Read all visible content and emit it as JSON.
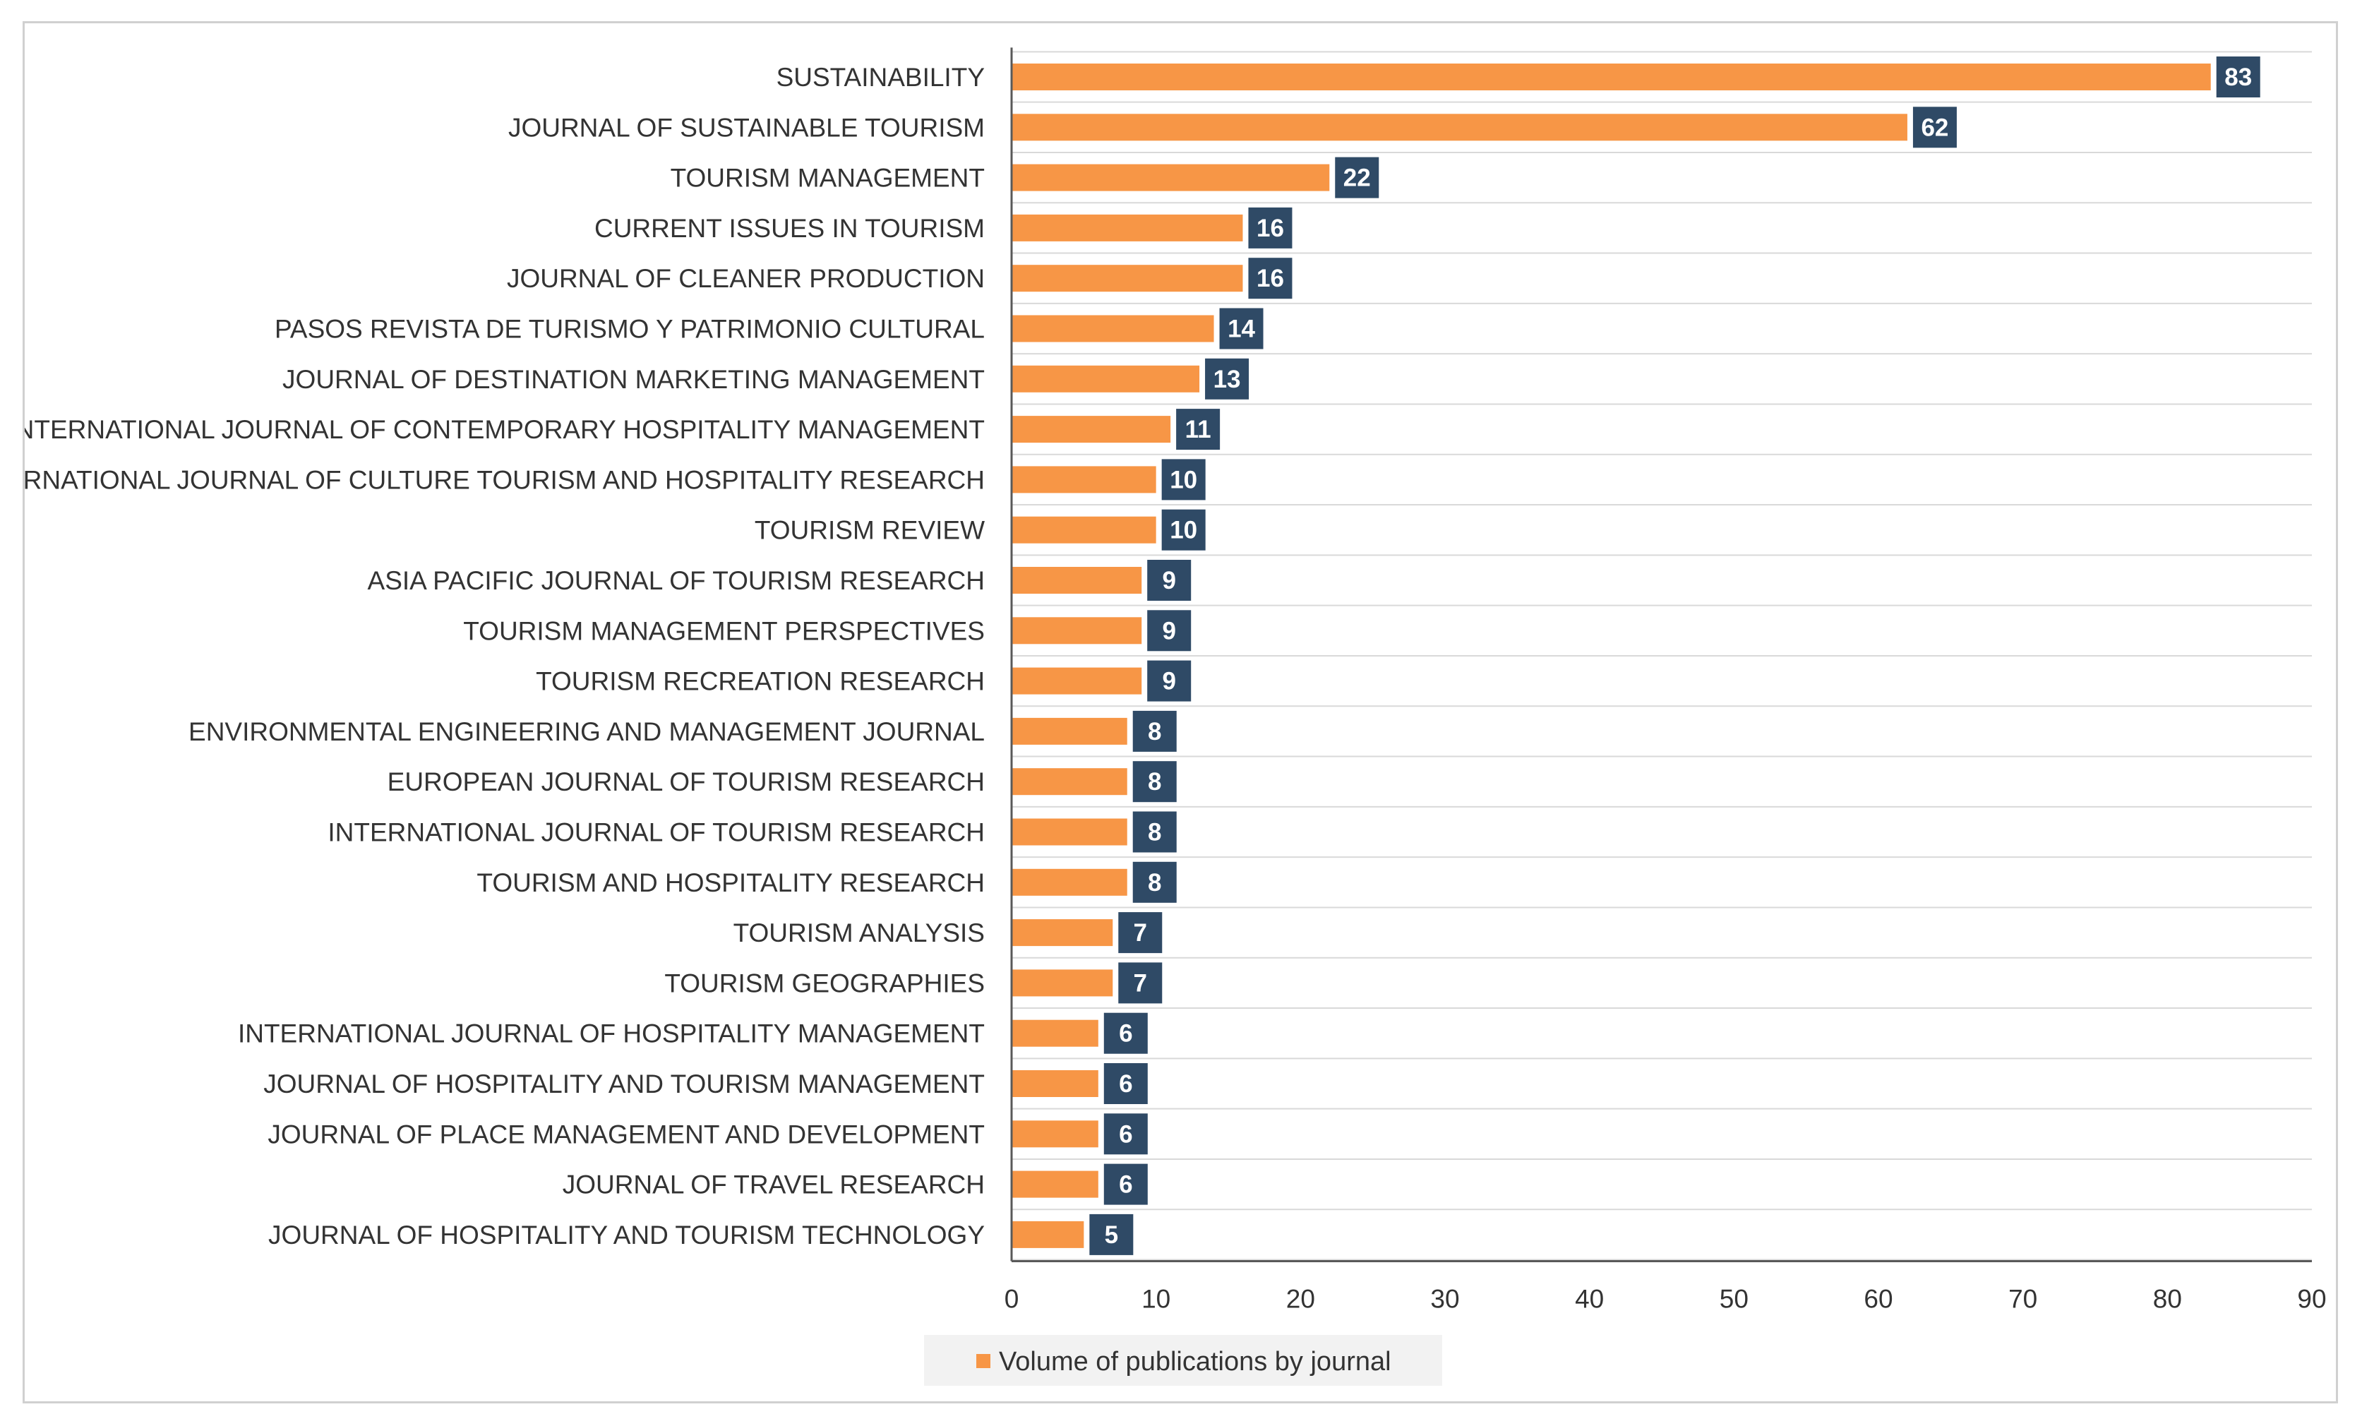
{
  "chart_data": {
    "type": "bar",
    "orientation": "horizontal",
    "categories": [
      "SUSTAINABILITY",
      "JOURNAL OF SUSTAINABLE TOURISM",
      "TOURISM MANAGEMENT",
      "CURRENT ISSUES IN TOURISM",
      "JOURNAL OF CLEANER PRODUCTION",
      "PASOS REVISTA DE TURISMO Y PATRIMONIO CULTURAL",
      "JOURNAL OF DESTINATION MARKETING MANAGEMENT",
      "INTERNATIONAL JOURNAL OF CONTEMPORARY HOSPITALITY MANAGEMENT",
      "INTERNATIONAL JOURNAL OF CULTURE TOURISM AND HOSPITALITY RESEARCH",
      "TOURISM REVIEW",
      "ASIA PACIFIC JOURNAL OF TOURISM RESEARCH",
      "TOURISM MANAGEMENT PERSPECTIVES",
      "TOURISM RECREATION RESEARCH",
      "ENVIRONMENTAL ENGINEERING AND MANAGEMENT JOURNAL",
      "EUROPEAN JOURNAL OF TOURISM RESEARCH",
      "INTERNATIONAL JOURNAL OF TOURISM RESEARCH",
      "TOURISM AND HOSPITALITY RESEARCH",
      "TOURISM ANALYSIS",
      "TOURISM GEOGRAPHIES",
      "INTERNATIONAL JOURNAL OF HOSPITALITY MANAGEMENT",
      "JOURNAL OF HOSPITALITY AND TOURISM MANAGEMENT",
      "JOURNAL OF PLACE MANAGEMENT AND DEVELOPMENT",
      "JOURNAL OF TRAVEL RESEARCH",
      "JOURNAL OF HOSPITALITY AND TOURISM TECHNOLOGY"
    ],
    "series": [
      {
        "name": "Volume of publications by journal",
        "values": [
          83,
          62,
          22,
          16,
          16,
          14,
          13,
          11,
          10,
          10,
          9,
          9,
          9,
          8,
          8,
          8,
          8,
          7,
          7,
          6,
          6,
          6,
          6,
          5
        ],
        "color": "#f79646",
        "label_bg": "#2f4a66"
      }
    ],
    "xlim": [
      0,
      90
    ],
    "xticks": [
      0,
      10,
      20,
      30,
      40,
      50,
      60,
      70,
      80,
      90
    ],
    "grid": true,
    "legend": "bottom-center",
    "title": "",
    "xlabel": "",
    "ylabel": ""
  },
  "colors": {
    "bar": "#f79646",
    "value_label_bg": "#2f4a66",
    "grid": "#d9d9d9",
    "axis": "#595959",
    "legend_bg": "#f2f2f2"
  }
}
